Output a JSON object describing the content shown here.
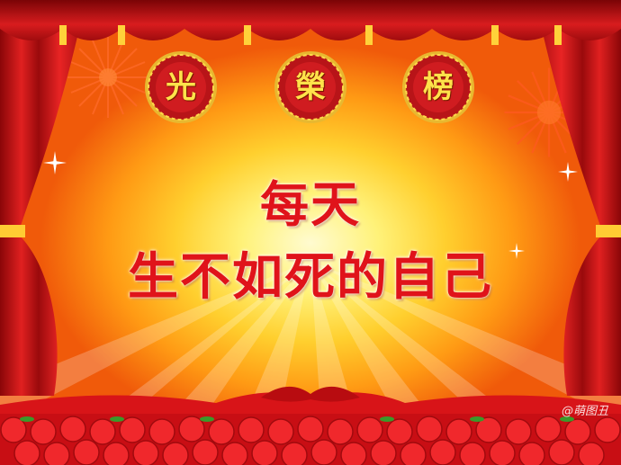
{
  "medallions": [
    {
      "char": "光"
    },
    {
      "char": "榮"
    },
    {
      "char": "榜"
    }
  ],
  "headline": {
    "line1": "每天",
    "line2": "生不如死的自己"
  },
  "watermark": "@萌图丑",
  "colors": {
    "text_red": "#e0131a",
    "curtain_red": "#c4141a",
    "gold": "#ffd23a",
    "medallion_red": "#c8161c"
  }
}
